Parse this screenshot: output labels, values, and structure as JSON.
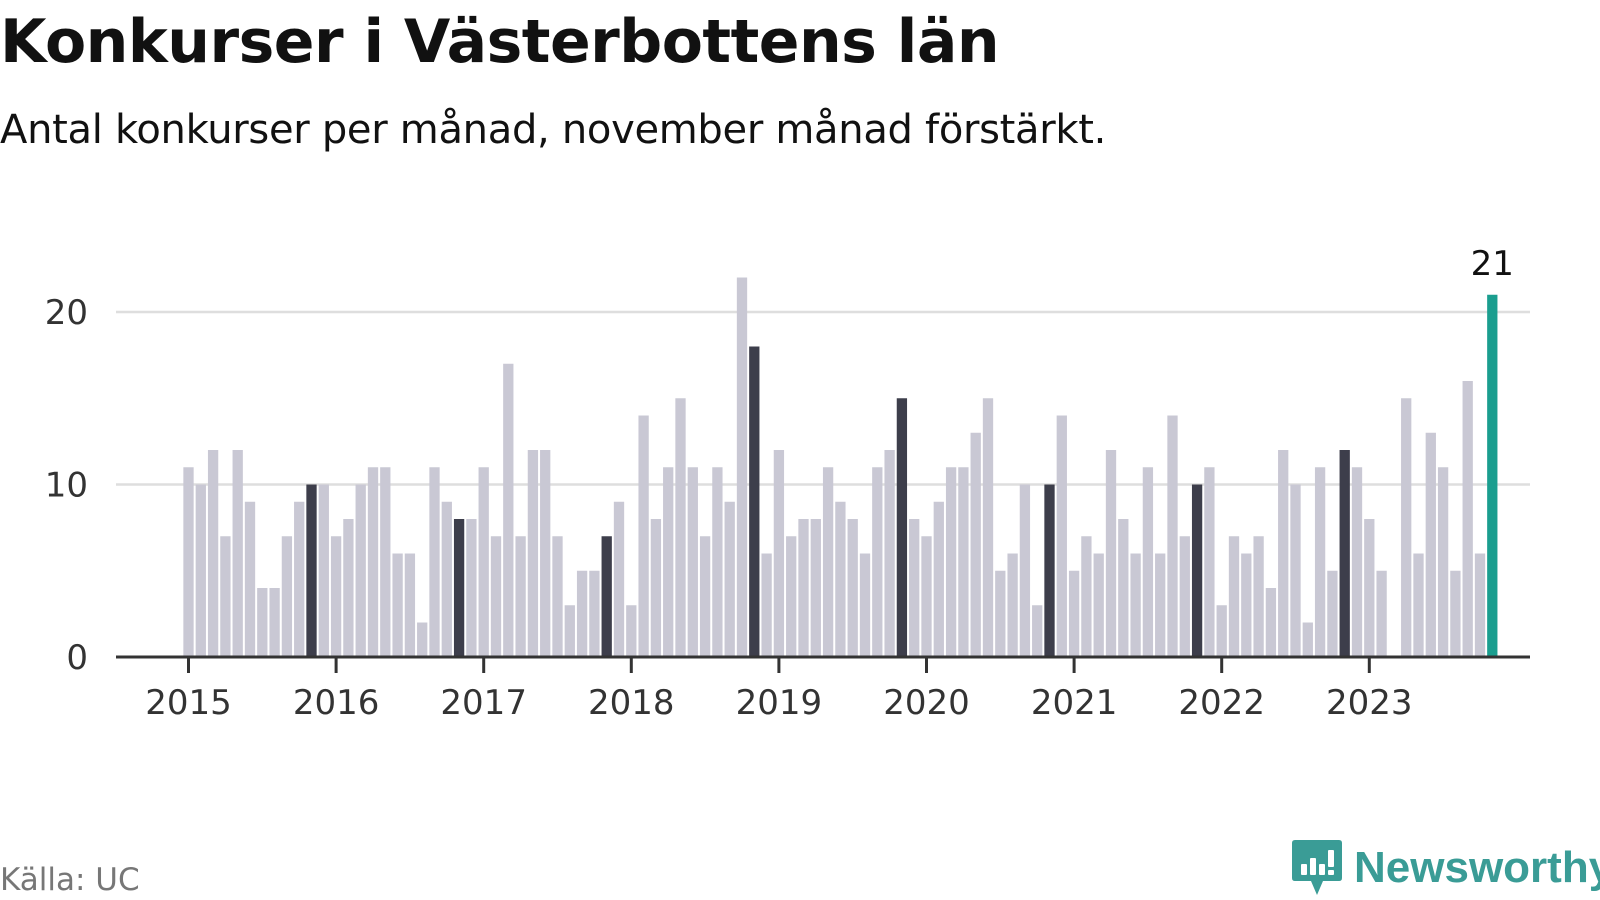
{
  "chart_data": {
    "type": "bar",
    "title": "Konkurser i Västerbottens län",
    "subtitle": "Antal konkurser per månad, november månad förstärkt.",
    "x_start": "2015-01",
    "x_tick_labels": [
      "2015",
      "2016",
      "2017",
      "2018",
      "2019",
      "2020",
      "2021",
      "2022",
      "2023"
    ],
    "y_ticks": [
      0,
      10,
      20
    ],
    "ylim": [
      0,
      24
    ],
    "grid": true,
    "values": [
      11,
      10,
      12,
      7,
      12,
      9,
      4,
      4,
      7,
      9,
      10,
      10,
      7,
      8,
      10,
      11,
      11,
      6,
      6,
      2,
      11,
      9,
      8,
      8,
      11,
      7,
      17,
      7,
      12,
      12,
      7,
      3,
      5,
      5,
      7,
      9,
      3,
      14,
      8,
      11,
      15,
      11,
      7,
      11,
      9,
      22,
      18,
      6,
      12,
      7,
      8,
      8,
      11,
      9,
      8,
      6,
      11,
      12,
      15,
      8,
      7,
      9,
      11,
      11,
      13,
      15,
      5,
      6,
      10,
      3,
      10,
      14,
      5,
      7,
      6,
      12,
      8,
      6,
      11,
      6,
      14,
      7,
      10,
      11,
      3,
      7,
      6,
      7,
      4,
      12,
      10,
      2,
      11,
      5,
      12,
      11,
      8,
      5,
      0,
      15,
      6,
      13,
      11,
      5,
      16,
      6,
      21
    ],
    "highlight_month": "november",
    "last_value_label": "21",
    "colors": {
      "regular": "#c9c8d4",
      "highlight": "#3d3e4b",
      "latest": "#1a9e8f",
      "grid": "#dedede",
      "axis": "#333333"
    }
  },
  "source": "Källa: UC",
  "brand": {
    "name": "Newsworthy",
    "icon": "newsworthy-logo-icon",
    "color": "#3a9c96"
  }
}
